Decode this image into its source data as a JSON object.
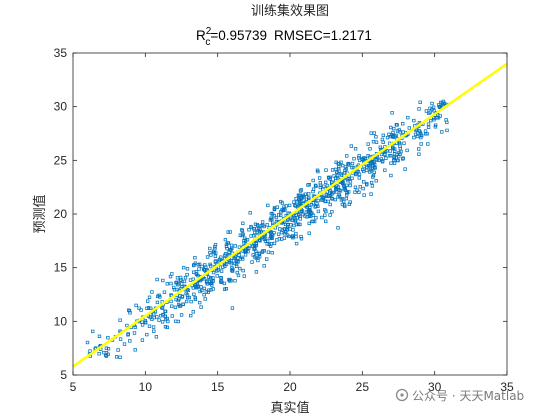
{
  "chart_data": {
    "type": "scatter",
    "title": "训练集效果图",
    "subtitle": {
      "r": "R",
      "sup": "2",
      "sub": "c",
      "r2_value": "=0.95739",
      "rmse_text": "RMSEC=1.2171"
    },
    "xlabel": "真实值",
    "ylabel": "预测值",
    "xlim": [
      5,
      35
    ],
    "ylim": [
      5,
      35
    ],
    "xticks": [
      5,
      10,
      15,
      20,
      25,
      30,
      35
    ],
    "yticks": [
      5,
      10,
      15,
      20,
      25,
      30,
      35
    ],
    "grid": false,
    "colors": {
      "points": "#0072bd",
      "fit_line": "#ffff00",
      "axes": "#262626"
    },
    "fit_line": {
      "x": [
        5,
        35
      ],
      "y": [
        5.8,
        34.0
      ]
    },
    "points": {
      "marker": "hollow-square",
      "range_x": [
        6,
        31
      ],
      "range_y": [
        6.5,
        30.5
      ],
      "approx_count": 1000
    }
  },
  "watermark": {
    "icon": "wechat-channel-icon",
    "text": "公众号 · 天天Matlab"
  }
}
